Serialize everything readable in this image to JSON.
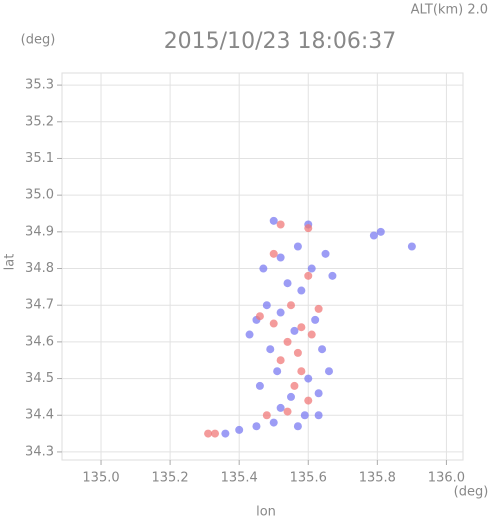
{
  "chart_data": {
    "type": "scatter",
    "title": "2015/10/23 18:06:37",
    "altitude_label": "ALT(km) 2.0",
    "xlabel": "lon",
    "ylabel": "lat",
    "x_unit": "(deg)",
    "y_unit": "(deg)",
    "xlim": [
      134.887,
      136.048
    ],
    "ylim": [
      34.278,
      35.333
    ],
    "xticks": [
      {
        "value": 135.0,
        "label": "135.0"
      },
      135.2,
      135.4,
      135.6,
      135.8,
      {
        "value": 136.0,
        "label": "136.0"
      }
    ],
    "yticks": [
      34.3,
      34.4,
      34.5,
      34.6,
      34.7,
      34.8,
      34.9,
      {
        "value": 35.0,
        "label": "35.0"
      },
      35.1,
      35.2,
      35.3
    ],
    "grid": true,
    "series": [
      {
        "color": "#7b7bf2",
        "x": [
          135.5,
          135.6,
          135.47,
          135.52,
          135.57,
          135.65,
          135.67,
          135.79,
          135.81,
          135.48,
          135.45,
          135.52,
          135.62,
          135.56,
          135.49,
          135.64,
          135.51,
          135.6,
          135.46,
          135.55,
          135.63,
          135.52,
          135.59,
          135.5,
          135.63,
          135.4,
          135.45,
          135.36,
          135.57,
          135.66,
          135.43,
          135.58,
          135.54,
          135.61,
          135.9
        ],
        "values": [
          34.93,
          34.92,
          34.8,
          34.83,
          34.86,
          34.84,
          34.78,
          34.89,
          34.9,
          34.7,
          34.66,
          34.68,
          34.66,
          34.63,
          34.58,
          34.58,
          34.52,
          34.5,
          34.48,
          34.45,
          34.46,
          34.42,
          34.4,
          34.38,
          34.4,
          34.36,
          34.37,
          34.35,
          34.37,
          34.52,
          34.62,
          34.74,
          34.76,
          34.8,
          34.86
        ]
      },
      {
        "color": "#f07a7a",
        "x": [
          135.52,
          135.6,
          135.5,
          135.6,
          135.55,
          135.5,
          135.58,
          135.54,
          135.61,
          135.57,
          135.52,
          135.6,
          135.56,
          135.54,
          135.48,
          135.33,
          135.31,
          135.63,
          135.46,
          135.58
        ],
        "values": [
          34.92,
          34.91,
          34.84,
          34.78,
          34.7,
          34.65,
          34.64,
          34.6,
          34.62,
          34.57,
          34.55,
          34.44,
          34.48,
          34.41,
          34.4,
          34.35,
          34.35,
          34.69,
          34.67,
          34.52
        ]
      }
    ]
  }
}
